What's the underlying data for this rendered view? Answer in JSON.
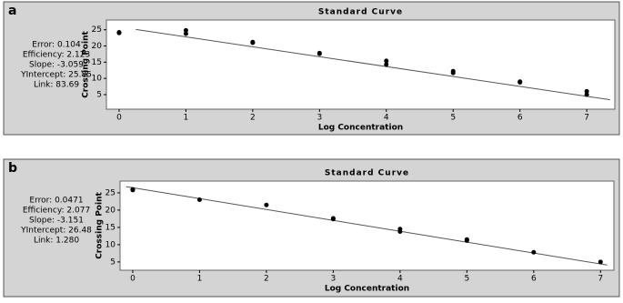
{
  "chart_data": [
    {
      "type": "scatter",
      "panel_label": "a",
      "title": "Standard Curve",
      "x_label": "Log Concentration",
      "y_label": "Crossing Point",
      "annotations": [
        "Error: 0.104",
        "Efficiency: 2.123",
        "Slope: -3.059",
        "YIntercept: 25.85",
        "Link: 83.69"
      ],
      "x": [
        0,
        0,
        1,
        1,
        2,
        2,
        3,
        3,
        4,
        4,
        5,
        5,
        6,
        6,
        7,
        7
      ],
      "values": [
        24,
        24.2,
        24.8,
        23.8,
        21.2,
        21,
        17.6,
        17.8,
        15.4,
        14.3,
        12.2,
        11.7,
        9,
        8.8,
        6,
        5
      ],
      "color": "#000000",
      "fit_line": {
        "x": [
          0.25,
          7.35
        ],
        "values": [
          25.1,
          3.4
        ],
        "color": "#555555"
      },
      "xlim": [
        -0.19,
        7.42
      ],
      "xticks": [
        0,
        1,
        2,
        3,
        4,
        5,
        6,
        7
      ],
      "ylim": [
        0.5,
        28
      ],
      "yticks": [
        5,
        10,
        15,
        20,
        25
      ]
    },
    {
      "type": "scatter",
      "panel_label": "b",
      "title": "Standard Curve",
      "x_label": "Log Concentration",
      "y_label": "Crossing Point",
      "annotations": [
        "Error: 0.0471",
        "Efficiency: 2.077",
        "Slope: -3.151",
        "YIntercept: 26.48",
        "Link: 1.280"
      ],
      "x": [
        0,
        0,
        1,
        2,
        3,
        3,
        4,
        4,
        5,
        5,
        6,
        7
      ],
      "values": [
        26,
        25.8,
        23,
        21.5,
        17.6,
        17.4,
        14.5,
        13.8,
        11.5,
        11.2,
        7.8,
        5
      ],
      "color": "#000000",
      "fit_line": {
        "x": [
          -0.1,
          7.1
        ],
        "values": [
          26.8,
          4.1
        ],
        "color": "#555555"
      },
      "xlim": [
        -0.19,
        7.2
      ],
      "xticks": [
        0,
        1,
        2,
        3,
        4,
        5,
        6,
        7
      ],
      "ylim": [
        2.6,
        28.4
      ],
      "yticks": [
        5,
        10,
        15,
        20,
        25
      ]
    }
  ]
}
